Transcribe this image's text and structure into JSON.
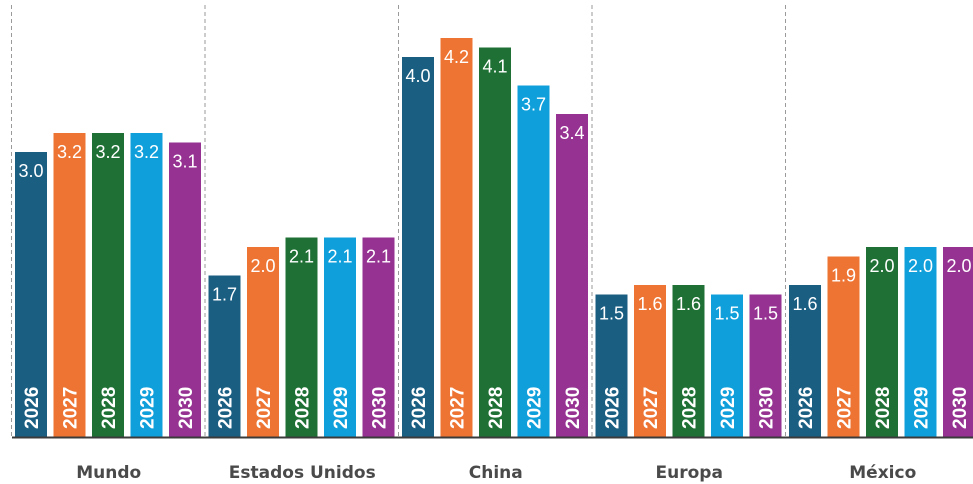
{
  "chart_data": {
    "type": "bar",
    "categories": [
      "Mundo",
      "Estados Unidos",
      "China",
      "Europa",
      "México"
    ],
    "series": [
      {
        "name": "2026",
        "color": "#1a5e82",
        "values": [
          3.0,
          1.7,
          4.0,
          1.5,
          1.6
        ]
      },
      {
        "name": "2027",
        "color": "#ee7433",
        "values": [
          3.2,
          2.0,
          4.2,
          1.6,
          1.9
        ]
      },
      {
        "name": "2028",
        "color": "#1f7035",
        "values": [
          3.2,
          2.1,
          4.1,
          1.6,
          2.0
        ]
      },
      {
        "name": "2029",
        "color": "#0f9fdb",
        "values": [
          3.2,
          2.1,
          3.7,
          1.5,
          2.0
        ]
      },
      {
        "name": "2030",
        "color": "#963291",
        "values": [
          3.1,
          2.1,
          3.4,
          1.5,
          2.0
        ]
      }
    ],
    "value_labels": [
      [
        "3.0",
        "1.7",
        "4.0",
        "1.5",
        "1.6"
      ],
      [
        "3.2",
        "2.0",
        "4.2",
        "1.6",
        "1.9"
      ],
      [
        "3.2",
        "2.1",
        "4.1",
        "1.6",
        "2.0"
      ],
      [
        "3.2",
        "2.1",
        "3.7",
        "1.5",
        "2.0"
      ],
      [
        "3.1",
        "2.1",
        "3.4",
        "1.5",
        "2.0"
      ]
    ],
    "xlabel": "",
    "ylabel": "",
    "ylim": [
      0,
      4.2
    ],
    "grid": false,
    "legend": "none"
  }
}
